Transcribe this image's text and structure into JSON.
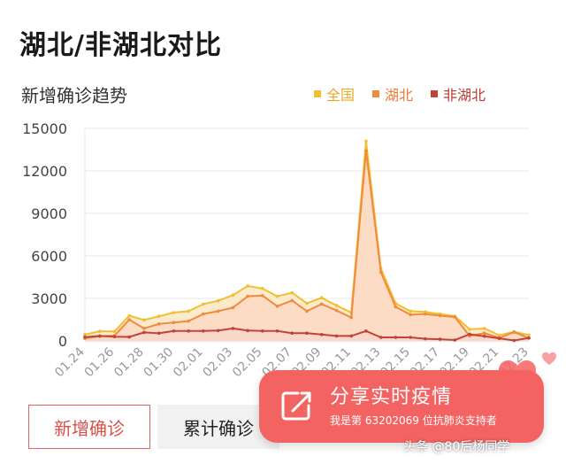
{
  "title": "湖北/非湖北对比",
  "share": {
    "main": "分享实时疫情",
    "sub": "我是第 63202069 位抗肺炎支持者"
  },
  "tabs": {
    "new_label": "新增确诊",
    "total_label": "累计确诊"
  },
  "watermark": "头条 @80后杨同学",
  "chart_data": {
    "type": "area",
    "title": "新增确诊趋势",
    "ylim": [
      0,
      15000
    ],
    "yticks": [
      0,
      3000,
      6000,
      9000,
      12000,
      15000
    ],
    "x": [
      "01.24",
      "01.25",
      "01.26",
      "01.27",
      "01.28",
      "01.29",
      "01.30",
      "01.31",
      "02.01",
      "02.02",
      "02.03",
      "02.04",
      "02.05",
      "02.06",
      "02.07",
      "02.08",
      "02.09",
      "02.10",
      "02.11",
      "02.12",
      "02.13",
      "02.14",
      "02.15",
      "02.16",
      "02.17",
      "02.18",
      "02.19",
      "02.20",
      "02.21",
      "02.22",
      "02.23"
    ],
    "xtick_labels": [
      "01.24",
      "01.26",
      "01.28",
      "01.30",
      "02.01",
      "02.03",
      "02.05",
      "02.07",
      "02.09",
      "02.11",
      "02.13",
      "02.15",
      "02.17",
      "02.19",
      "02.21",
      "02.23"
    ],
    "series": [
      {
        "name": "全国",
        "color": "#f0c030",
        "values": [
          450,
          680,
          670,
          1780,
          1480,
          1740,
          2000,
          2100,
          2600,
          2830,
          3230,
          3880,
          3700,
          3150,
          3400,
          2650,
          3050,
          2500,
          2000,
          14100,
          5100,
          2650,
          2100,
          2050,
          1900,
          1750,
          820,
          880,
          400,
          650,
          410
        ]
      },
      {
        "name": "湖北",
        "color": "#f08a3c",
        "values": [
          180,
          330,
          370,
          1500,
          880,
          1200,
          1300,
          1400,
          1900,
          2100,
          2350,
          3150,
          3200,
          2450,
          2850,
          2100,
          2600,
          2150,
          1650,
          13400,
          4850,
          2400,
          1850,
          1900,
          1780,
          1690,
          350,
          550,
          220,
          620,
          200
        ]
      },
      {
        "name": "非湖北",
        "color": "#c0433a",
        "values": [
          270,
          350,
          300,
          280,
          600,
          540,
          700,
          700,
          700,
          730,
          880,
          730,
          700,
          700,
          550,
          550,
          450,
          350,
          350,
          700,
          250,
          250,
          250,
          150,
          120,
          60,
          470,
          330,
          180,
          30,
          210
        ]
      }
    ]
  }
}
